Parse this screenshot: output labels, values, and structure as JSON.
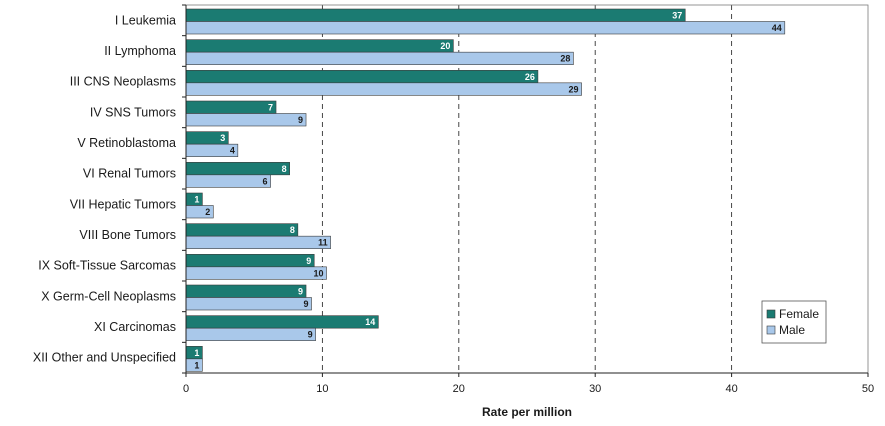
{
  "chart_data": {
    "type": "bar",
    "orientation": "horizontal",
    "title": "",
    "xlabel": "Rate per million",
    "ylabel": "",
    "xlim": [
      0,
      50
    ],
    "xticks": [
      "0",
      "10",
      "20",
      "30",
      "40",
      "50"
    ],
    "grid": "vertical dashed",
    "legend_position": "bottom-right",
    "categories": [
      "I Leukemia",
      "II Lymphoma",
      "III CNS Neoplasms",
      "IV SNS Tumors",
      "V Retinoblastoma",
      "VI Renal Tumors",
      "VII Hepatic Tumors",
      "VIII Bone Tumors",
      "IX Soft-Tissue Sarcomas",
      "X Germ-Cell Neoplasms",
      "XI Carcinomas",
      "XII Other and Unspecified"
    ],
    "series": [
      {
        "name": "Female",
        "color": "#1b7b72",
        "label_color": "#ffffff",
        "values": [
          36.6,
          19.6,
          25.8,
          6.6,
          3.1,
          7.6,
          1.2,
          8.2,
          9.4,
          8.8,
          14.1,
          1.2
        ],
        "labels": [
          "37",
          "20",
          "26",
          "7",
          "3",
          "8",
          "1",
          "8",
          "9",
          "9",
          "14",
          "1"
        ]
      },
      {
        "name": "Male",
        "color": "#a9c8ea",
        "label_color": "#1a1a1a",
        "values": [
          43.9,
          28.4,
          29.0,
          8.8,
          3.8,
          6.2,
          2.0,
          10.6,
          10.3,
          9.2,
          9.5,
          1.2
        ],
        "labels": [
          "44",
          "28",
          "29",
          "9",
          "4",
          "6",
          "2",
          "11",
          "10",
          "9",
          "9",
          "1"
        ]
      }
    ]
  }
}
